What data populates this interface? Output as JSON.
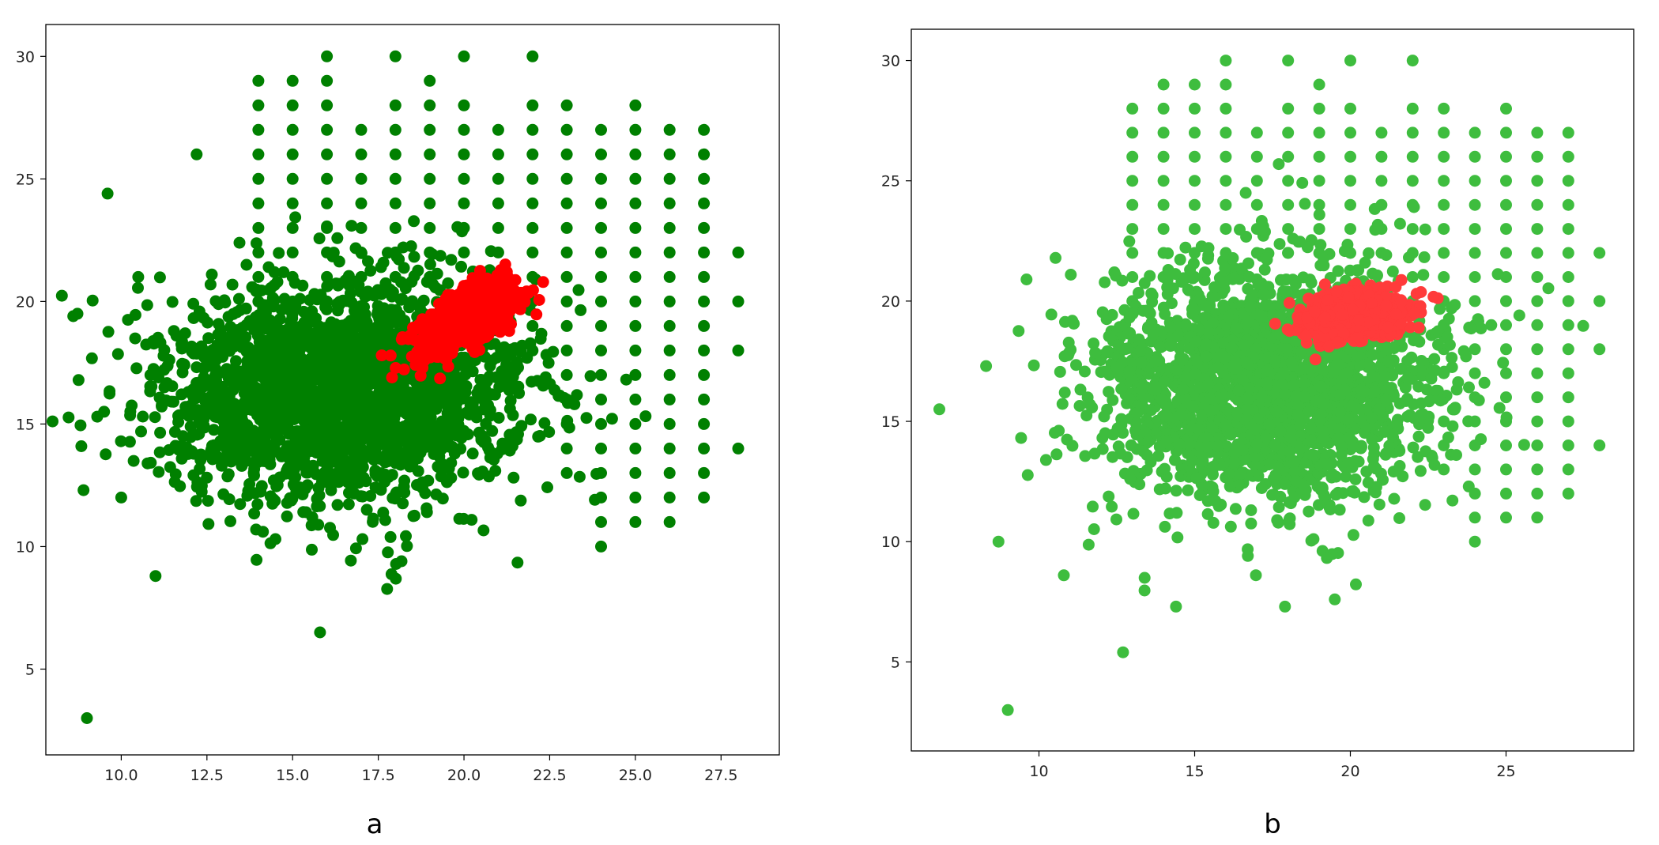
{
  "chart_data": [
    {
      "type": "scatter",
      "panel_label": "a",
      "colors": {
        "background_points": "#008000",
        "highlight_points": "#ff0000"
      },
      "xlim": [
        7.8,
        29.2
      ],
      "ylim": [
        1.5,
        31.3
      ],
      "xticks": [
        10.0,
        12.5,
        15.0,
        17.5,
        20.0,
        22.5,
        25.0,
        27.5
      ],
      "xtick_labels": [
        "10.0",
        "12.5",
        "15.0",
        "17.5",
        "20.0",
        "22.5",
        "25.0",
        "27.5"
      ],
      "yticks": [
        5,
        10,
        15,
        20,
        25,
        30
      ],
      "ytick_labels": [
        "5",
        "10",
        "15",
        "20",
        "25",
        "30"
      ],
      "series": [
        {
          "role": "background",
          "cluster": {
            "center": [
              16.3,
              16.3
            ],
            "spread": [
              2.6,
              2.3
            ],
            "count": 2300
          },
          "grid_points": [
            {
              "x": 14,
              "y": [
                19,
                20,
                21,
                22,
                23,
                24,
                25,
                26,
                27,
                28,
                29
              ]
            },
            {
              "x": 15,
              "y": [
                20,
                21,
                22,
                23,
                24,
                25,
                26,
                27,
                28,
                29
              ]
            },
            {
              "x": 16,
              "y": [
                20,
                21,
                22,
                23,
                24,
                25,
                26,
                27,
                28,
                29,
                30
              ]
            },
            {
              "x": 17,
              "y": [
                21,
                22,
                23,
                24,
                25,
                26,
                27
              ]
            },
            {
              "x": 18,
              "y": [
                21,
                22,
                23,
                24,
                25,
                26,
                27,
                28,
                30
              ]
            },
            {
              "x": 19,
              "y": [
                21,
                22,
                23,
                24,
                25,
                26,
                27,
                28,
                29
              ]
            },
            {
              "x": 20,
              "y": [
                22,
                23,
                24,
                25,
                26,
                27,
                28,
                30
              ]
            },
            {
              "x": 21,
              "y": [
                22,
                23,
                24,
                25,
                26,
                27
              ]
            },
            {
              "x": 22,
              "y": [
                18,
                19,
                20,
                21,
                22,
                23,
                24,
                25,
                26,
                27,
                28,
                30
              ]
            },
            {
              "x": 23,
              "y": [
                13,
                14,
                15,
                16,
                17,
                18,
                19,
                20,
                21,
                22,
                23,
                24,
                25,
                26,
                27,
                28
              ]
            },
            {
              "x": 24,
              "y": [
                10,
                11,
                12,
                13,
                14,
                15,
                16,
                17,
                18,
                19,
                20,
                21,
                22,
                23,
                24,
                25,
                26,
                27
              ]
            },
            {
              "x": 25,
              "y": [
                11,
                12,
                13,
                14,
                15,
                16,
                17,
                18,
                19,
                20,
                21,
                22,
                23,
                24,
                25,
                26,
                27,
                28
              ]
            },
            {
              "x": 26,
              "y": [
                11,
                12,
                13,
                14,
                15,
                16,
                17,
                18,
                19,
                20,
                21,
                22,
                23,
                24,
                25,
                26,
                27
              ]
            },
            {
              "x": 27,
              "y": [
                12,
                13,
                14,
                15,
                16,
                17,
                18,
                19,
                20,
                21,
                22,
                23,
                24,
                25,
                26,
                27
              ]
            },
            {
              "x": 28,
              "y": [
                14,
                18,
                20,
                22
              ]
            }
          ],
          "outliers": [
            [
              9.0,
              3.0
            ],
            [
              15.8,
              6.5
            ],
            [
              8.6,
              19.4
            ],
            [
              9.6,
              24.4
            ],
            [
              8.9,
              12.3
            ],
            [
              11.0,
              8.8
            ],
            [
              9.3,
              15.3
            ],
            [
              9.5,
              15.5
            ],
            [
              10.0,
              12.0
            ],
            [
              12.2,
              26.0
            ]
          ]
        },
        {
          "role": "highlight",
          "cluster": {
            "center": [
              20.1,
              19.3
            ],
            "spread": [
              0.75,
              0.55
            ],
            "tilt": 0.7,
            "count": 700
          },
          "outliers": [
            [
              17.9,
              16.9
            ],
            [
              17.6,
              17.8
            ]
          ]
        }
      ]
    },
    {
      "type": "scatter",
      "panel_label": "b",
      "colors": {
        "background_points": "#3ebd3e",
        "highlight_points": "#ff3b3b"
      },
      "xlim": [
        5.9,
        29.1
      ],
      "ylim": [
        1.3,
        31.3
      ],
      "xticks": [
        10,
        15,
        20,
        25
      ],
      "xtick_labels": [
        "10",
        "15",
        "20",
        "25"
      ],
      "yticks": [
        5,
        10,
        15,
        20,
        25,
        30
      ],
      "ytick_labels": [
        "5",
        "10",
        "15",
        "20",
        "25",
        "30"
      ],
      "series": [
        {
          "role": "background",
          "cluster": {
            "center": [
              17.3,
              16.6
            ],
            "spread": [
              2.7,
              2.5
            ],
            "count": 2300
          },
          "grid_points": [
            {
              "x": 13,
              "y": [
                20,
                21,
                22,
                23,
                24,
                25,
                26,
                27,
                28
              ]
            },
            {
              "x": 14,
              "y": [
                21,
                22,
                23,
                24,
                25,
                26,
                27,
                28,
                29
              ]
            },
            {
              "x": 15,
              "y": [
                21,
                22,
                23,
                24,
                25,
                26,
                27,
                28,
                29
              ]
            },
            {
              "x": 16,
              "y": [
                21,
                22,
                23,
                24,
                25,
                26,
                27,
                28,
                29,
                30
              ]
            },
            {
              "x": 17,
              "y": [
                22,
                23,
                24,
                25,
                26,
                27
              ]
            },
            {
              "x": 18,
              "y": [
                22,
                23,
                24,
                25,
                26,
                27,
                28,
                30
              ]
            },
            {
              "x": 19,
              "y": [
                22,
                23,
                24,
                25,
                26,
                27,
                28,
                29
              ]
            },
            {
              "x": 20,
              "y": [
                22,
                23,
                24,
                25,
                26,
                27,
                28,
                30
              ]
            },
            {
              "x": 21,
              "y": [
                22,
                23,
                24,
                25,
                26,
                27
              ]
            },
            {
              "x": 22,
              "y": [
                20,
                21,
                22,
                23,
                24,
                25,
                26,
                27,
                28,
                30
              ]
            },
            {
              "x": 23,
              "y": [
                13,
                14,
                15,
                16,
                17,
                18,
                19,
                20,
                21,
                22,
                23,
                24,
                25,
                26,
                27,
                28
              ]
            },
            {
              "x": 24,
              "y": [
                10,
                11,
                12,
                13,
                14,
                15,
                16,
                17,
                18,
                19,
                20,
                21,
                22,
                23,
                24,
                25,
                26,
                27
              ]
            },
            {
              "x": 25,
              "y": [
                11,
                12,
                13,
                14,
                15,
                16,
                17,
                18,
                19,
                20,
                21,
                22,
                23,
                24,
                25,
                26,
                27,
                28
              ]
            },
            {
              "x": 26,
              "y": [
                11,
                12,
                13,
                14,
                15,
                16,
                17,
                18,
                19,
                20,
                21,
                22,
                23,
                24,
                25,
                26,
                27
              ]
            },
            {
              "x": 27,
              "y": [
                12,
                13,
                14,
                15,
                16,
                17,
                18,
                19,
                20,
                21,
                22,
                23,
                24,
                25,
                26,
                27
              ]
            },
            {
              "x": 28,
              "y": [
                14,
                18,
                20,
                22
              ]
            }
          ],
          "outliers": [
            [
              9.0,
              3.0
            ],
            [
              12.7,
              5.4
            ],
            [
              6.8,
              15.5
            ],
            [
              8.7,
              10.0
            ],
            [
              10.8,
              8.6
            ],
            [
              14.4,
              7.3
            ],
            [
              17.9,
              7.3
            ],
            [
              19.5,
              7.6
            ],
            [
              9.6,
              20.9
            ],
            [
              8.3,
              17.3
            ]
          ]
        },
        {
          "role": "highlight",
          "cluster": {
            "center": [
              20.2,
              19.4
            ],
            "spread": [
              0.8,
              0.45
            ],
            "tilt": 0.15,
            "count": 700
          },
          "outliers": [
            [
              22.2,
              18.9
            ]
          ]
        }
      ]
    }
  ]
}
